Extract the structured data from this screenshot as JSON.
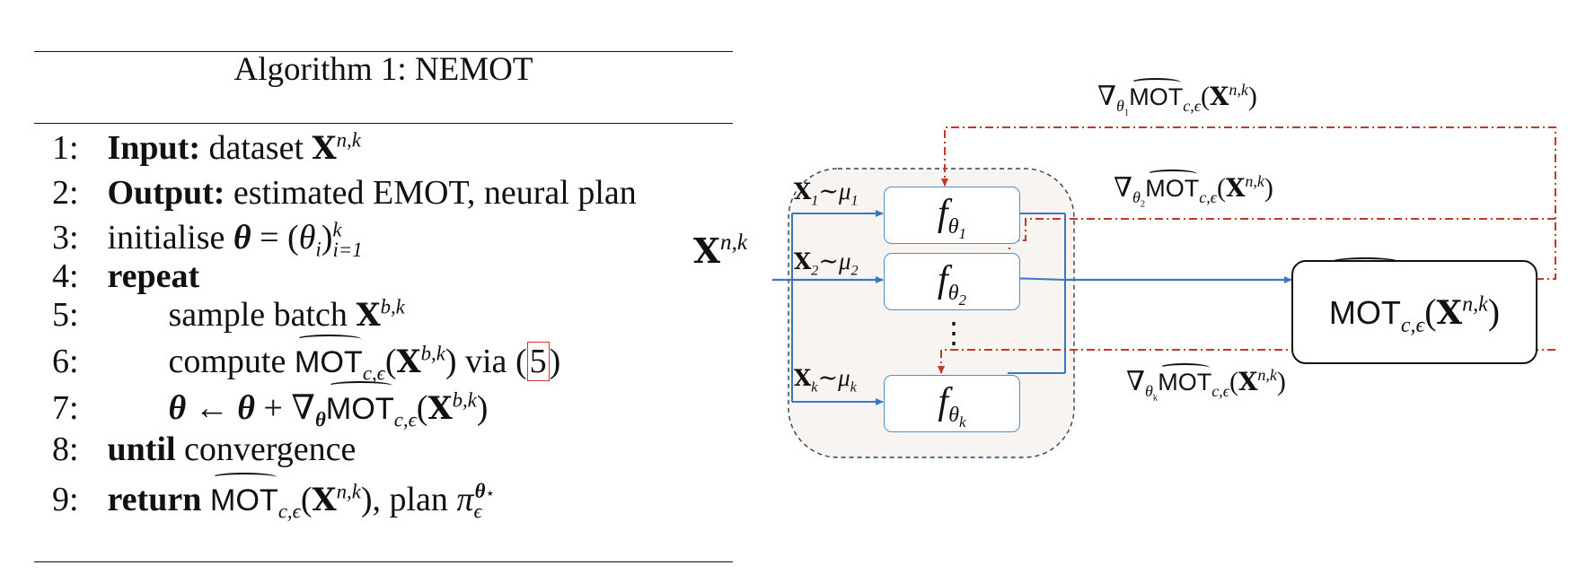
{
  "algorithm": {
    "title": "Algorithm 1: NEMOT",
    "lines": {
      "l1": {
        "num": "1:",
        "kw": "Input:",
        "text": "dataset"
      },
      "l2": {
        "num": "2:",
        "kw": "Output:",
        "text": "estimated EMOT, neural plan"
      },
      "l3": {
        "num": "3:",
        "text": "initialise"
      },
      "l4": {
        "num": "4:",
        "kw": "repeat"
      },
      "l5": {
        "num": "5:",
        "text": "sample batch"
      },
      "l6": {
        "num": "6:",
        "text": "compute",
        "via": "via",
        "ref": "5"
      },
      "l7": {
        "num": "7:"
      },
      "l8": {
        "num": "8:",
        "kw": "until",
        "text": "convergence"
      },
      "l9": {
        "num": "9:",
        "kw": "return",
        "text": ", plan"
      }
    }
  },
  "math": {
    "X": "X",
    "nk": "n,k",
    "bk": "b,k",
    "theta": "θ",
    "mot": "MOT",
    "ce": "c,ϵ",
    "nabla": "∇",
    "pi": "π",
    "eps": "ϵ",
    "f": "f",
    "mu": "μ",
    "sim": "∼",
    "vdots": "⋮",
    "sub1": "1",
    "sub2": "2",
    "subk": "k",
    "assign": "←",
    "plus": "+",
    "eq": "=",
    "i": "i",
    "i1": "i=1",
    "star": "⋆"
  },
  "colors": {
    "blue_arrow": "#3a78c2",
    "red_dashdot": "#c0392b",
    "box_border": "#4a90c8",
    "group_fill": "#f8f4f1",
    "group_border": "#2f3e52"
  }
}
